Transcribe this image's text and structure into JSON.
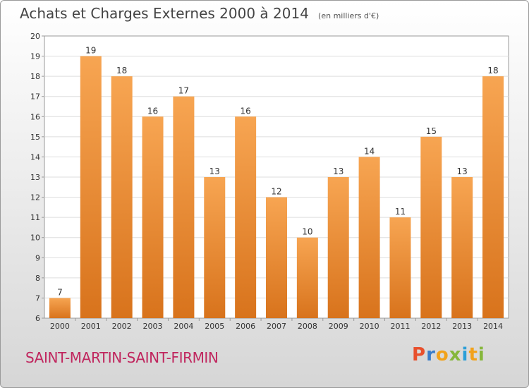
{
  "header": {
    "title": "Achats et Charges Externes 2000 à 2014",
    "subtitle": "(en milliers d'€)"
  },
  "footer": {
    "commune": "SAINT-MARTIN-SAINT-FIRMIN",
    "logo": "Proxiti"
  },
  "colors": {
    "bar_light": "#f5a04e",
    "bar_dark": "#d9731b",
    "commune": "#c0265e"
  },
  "chart_data": {
    "type": "bar",
    "title": "Achats et Charges Externes 2000 à 2014",
    "subtitle": "(en milliers d'€)",
    "categories": [
      "2000",
      "2001",
      "2002",
      "2003",
      "2004",
      "2005",
      "2006",
      "2007",
      "2008",
      "2009",
      "2010",
      "2011",
      "2012",
      "2013",
      "2014"
    ],
    "values": [
      7,
      19,
      18,
      16,
      17,
      13,
      16,
      12,
      10,
      13,
      14,
      11,
      15,
      13,
      18
    ],
    "ylim": [
      6,
      20
    ],
    "yticks": [
      6,
      7,
      8,
      9,
      10,
      11,
      12,
      13,
      14,
      15,
      16,
      17,
      18,
      19,
      20
    ],
    "grid": true,
    "data_labels": true
  }
}
